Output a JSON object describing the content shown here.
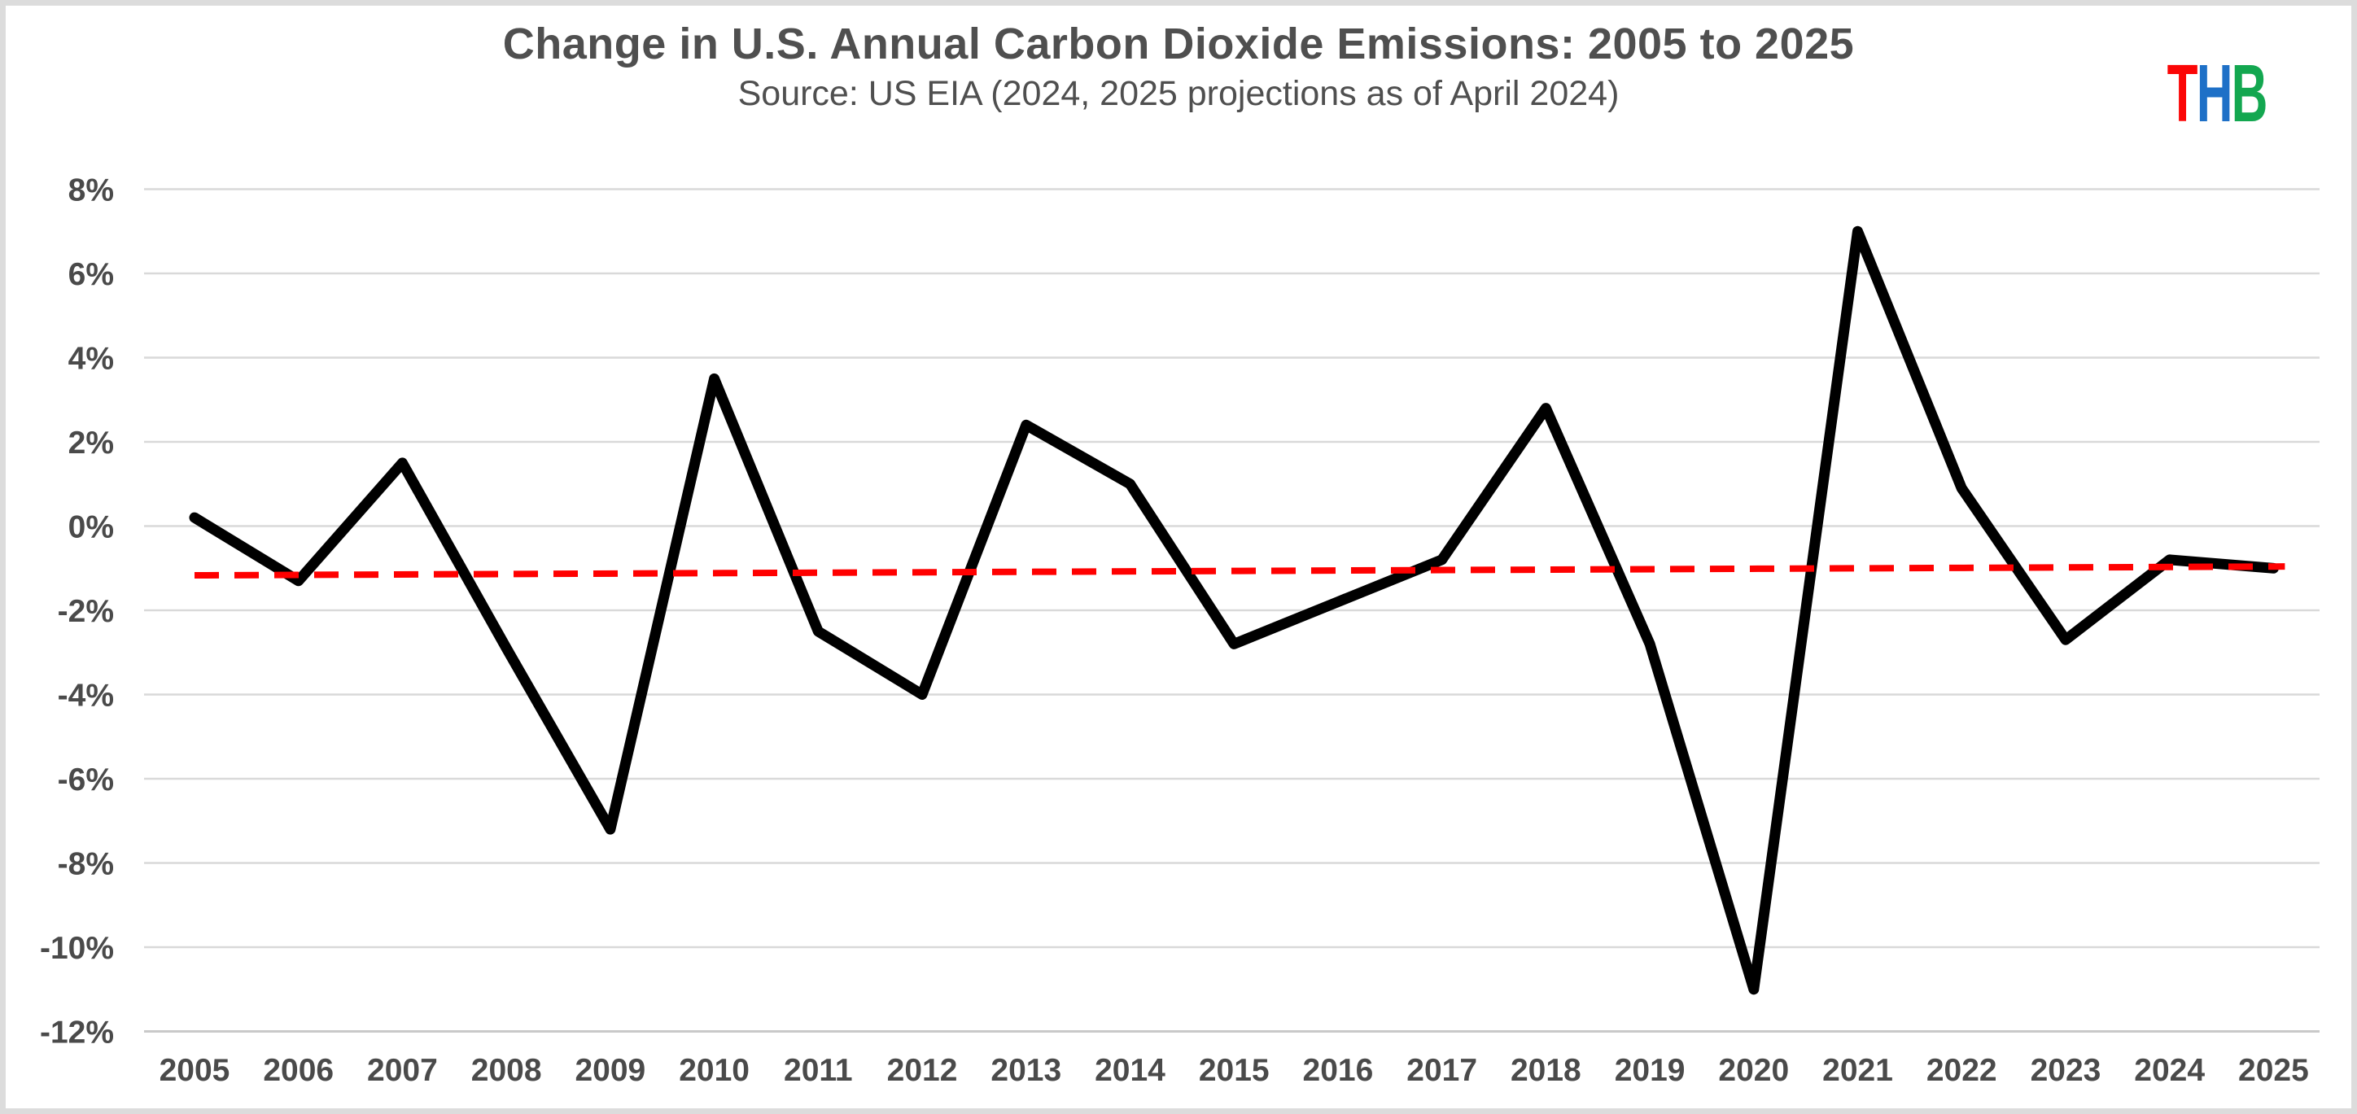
{
  "header": {
    "title": "Change in U.S. Annual Carbon Dioxide Emissions: 2005 to 2025",
    "subtitle": "Source: US EIA (2024, 2025 projections as of April 2024)"
  },
  "logo": {
    "letters": [
      {
        "char": "T",
        "color": "#fb0606"
      },
      {
        "char": "H",
        "color": "#1e70c7"
      },
      {
        "char": "B",
        "color": "#13a750"
      }
    ]
  },
  "chart_data": {
    "type": "line",
    "title": "Change in U.S. Annual Carbon Dioxide Emissions: 2005 to 2025",
    "subtitle": "Source: US EIA (2024, 2025 projections as of April 2024)",
    "categories": [
      2005,
      2006,
      2007,
      2008,
      2009,
      2010,
      2011,
      2012,
      2013,
      2014,
      2015,
      2016,
      2017,
      2018,
      2019,
      2020,
      2021,
      2022,
      2023,
      2024,
      2025
    ],
    "series": [
      {
        "name": "annual_change_pct",
        "color": "#000000",
        "values": [
          0.2,
          -1.3,
          1.5,
          -2.9,
          -7.2,
          3.5,
          -2.5,
          -4.0,
          2.4,
          1.0,
          -2.8,
          -1.8,
          -0.8,
          2.8,
          -2.8,
          -11.0,
          7.0,
          0.9,
          -2.7,
          -0.8,
          -1.0
        ]
      }
    ],
    "trend": {
      "name": "linear_trend",
      "color": "#ff0000",
      "style": "dashed",
      "start_value": -1.17,
      "end_value": -0.96
    },
    "ylim": [
      -12,
      8
    ],
    "ytick_step": 2,
    "yticks": [
      "8%",
      "6%",
      "4%",
      "2%",
      "0%",
      "-2%",
      "-4%",
      "-6%",
      "-8%",
      "-10%",
      "-12%"
    ],
    "xlabel": "",
    "ylabel": "",
    "grid": true,
    "legend": false,
    "gridline_color": "#d9d9d9",
    "axis_line_color": "#c9c9c9",
    "axis_label_color": "#4a4a4a"
  }
}
